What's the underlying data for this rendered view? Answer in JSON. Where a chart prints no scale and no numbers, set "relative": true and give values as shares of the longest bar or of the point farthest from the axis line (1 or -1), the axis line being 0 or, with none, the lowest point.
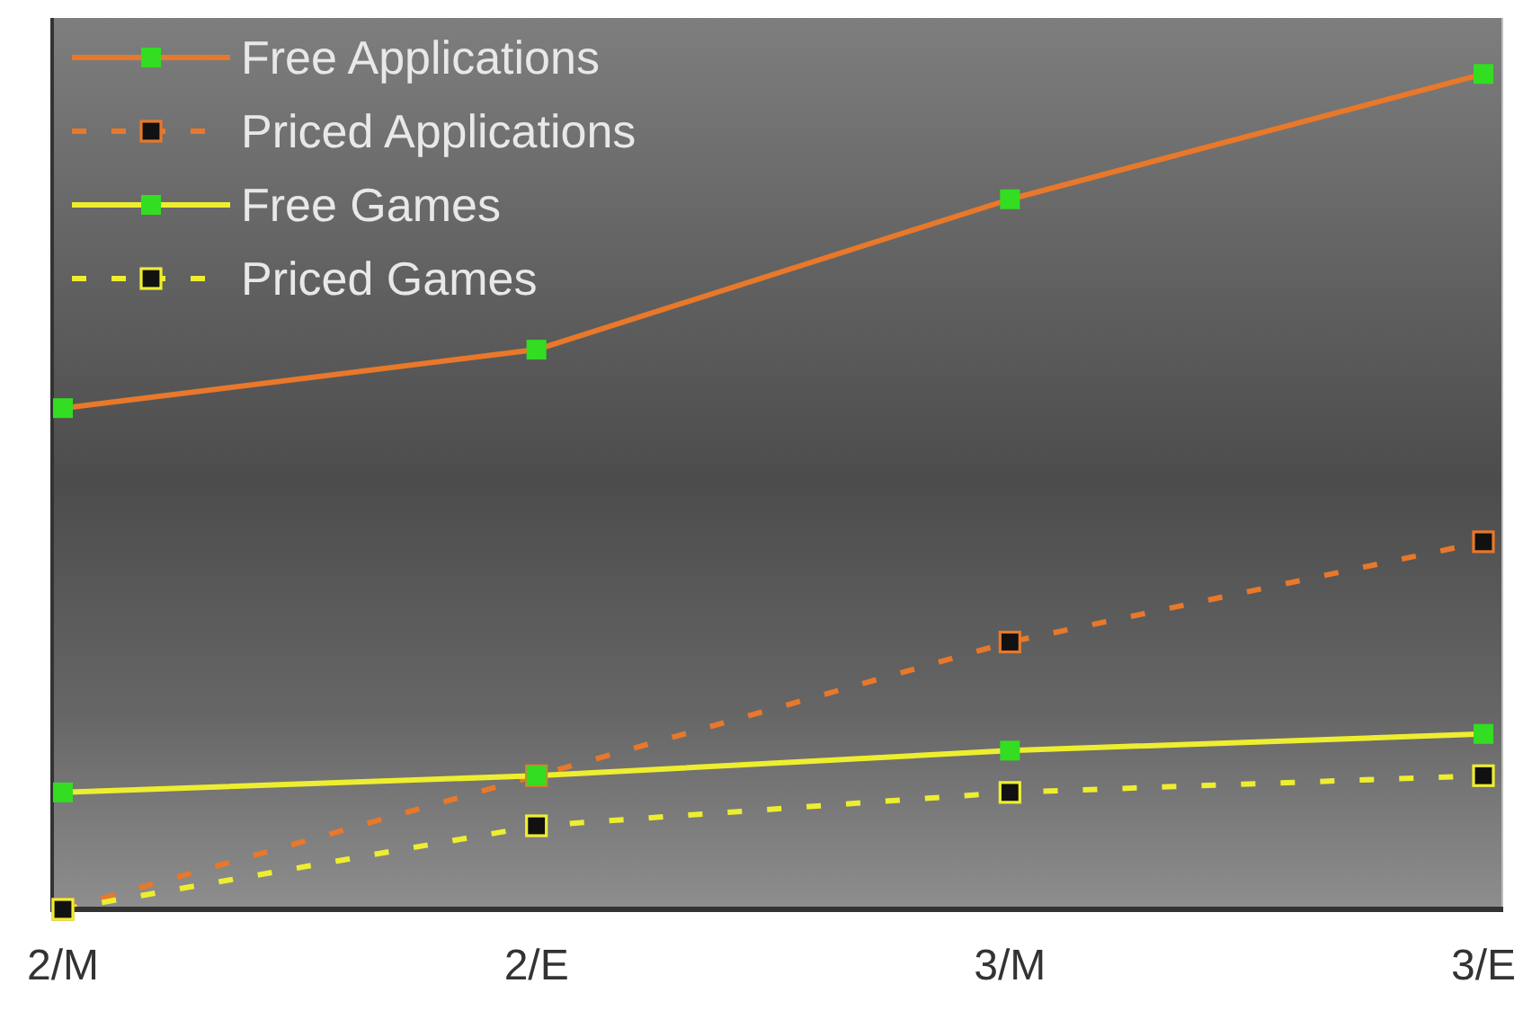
{
  "chart_data": {
    "type": "line",
    "categories": [
      "2/M",
      "2/E",
      "3/M",
      "3/E"
    ],
    "relative": true,
    "legend": "top left",
    "marker": "square",
    "series": [
      {
        "name": "Free Applications",
        "color": "#e8782a",
        "line_style": "solid",
        "values": [
          0.6,
          0.67,
          0.85,
          1
        ]
      },
      {
        "name": "Priced Applications",
        "color": "#e8782a",
        "line_style": "dashed",
        "values": [
          0,
          0.16,
          0.32,
          0.44
        ]
      },
      {
        "name": "Free Games",
        "color": "#eeee30",
        "line_style": "solid",
        "values": [
          0.14,
          0.16,
          0.19,
          0.21
        ]
      },
      {
        "name": "Priced Games",
        "color": "#eeee30",
        "line_style": "dashed",
        "values": [
          0,
          0.1,
          0.14,
          0.16
        ]
      }
    ]
  }
}
